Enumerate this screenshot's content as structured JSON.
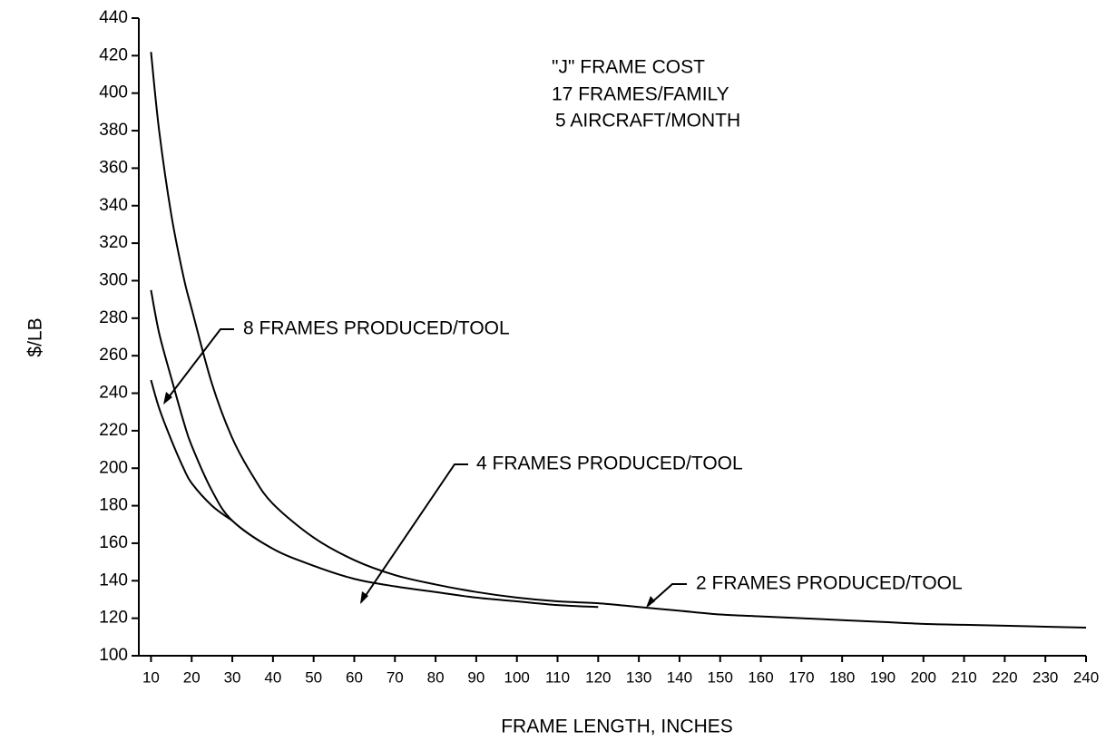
{
  "chart_data": {
    "type": "line",
    "annotations": [
      "\"J\" FRAME COST",
      "17 FRAMES/FAMILY",
      "5 AIRCRAFT/MONTH"
    ],
    "xlabel": "FRAME LENGTH, INCHES",
    "ylabel": "$/LB",
    "xlim": [
      7,
      240
    ],
    "xticks": [
      10,
      20,
      30,
      40,
      50,
      60,
      70,
      80,
      90,
      100,
      110,
      120,
      130,
      140,
      150,
      160,
      170,
      180,
      190,
      200,
      210,
      220,
      230,
      240
    ],
    "ylim": [
      100,
      440
    ],
    "yticks": [
      100,
      120,
      140,
      160,
      180,
      200,
      220,
      240,
      260,
      280,
      300,
      320,
      340,
      360,
      380,
      400,
      420,
      440
    ],
    "series": [
      {
        "name": "8 FRAMES PRODUCED/TOOL",
        "color": "#000000",
        "x": [
          10,
          12,
          15,
          18,
          20,
          25,
          30
        ],
        "values": [
          247,
          232,
          215,
          200,
          192,
          180,
          172
        ]
      },
      {
        "name": "4 FRAMES PRODUCED/TOOL",
        "color": "#000000",
        "x": [
          10,
          12,
          15,
          18,
          20,
          25,
          30,
          40,
          50,
          60,
          70,
          80,
          90,
          100,
          110,
          120
        ],
        "values": [
          295,
          272,
          248,
          225,
          212,
          188,
          172,
          157,
          148,
          141,
          137,
          134,
          131,
          129,
          127,
          126
        ]
      },
      {
        "name": "2 FRAMES PRODUCED/TOOL",
        "color": "#000000",
        "x": [
          10,
          12,
          15,
          18,
          20,
          25,
          30,
          35,
          40,
          50,
          60,
          70,
          80,
          90,
          100,
          110,
          120,
          130,
          140,
          150,
          160,
          170,
          180,
          190,
          200,
          210,
          220,
          230,
          240
        ],
        "values": [
          422,
          380,
          335,
          302,
          285,
          245,
          216,
          196,
          181,
          163,
          151,
          143,
          138,
          134,
          131,
          129,
          128,
          126,
          124,
          122,
          121,
          120,
          119,
          118,
          117,
          116.5,
          116,
          115.5,
          115
        ]
      }
    ]
  }
}
